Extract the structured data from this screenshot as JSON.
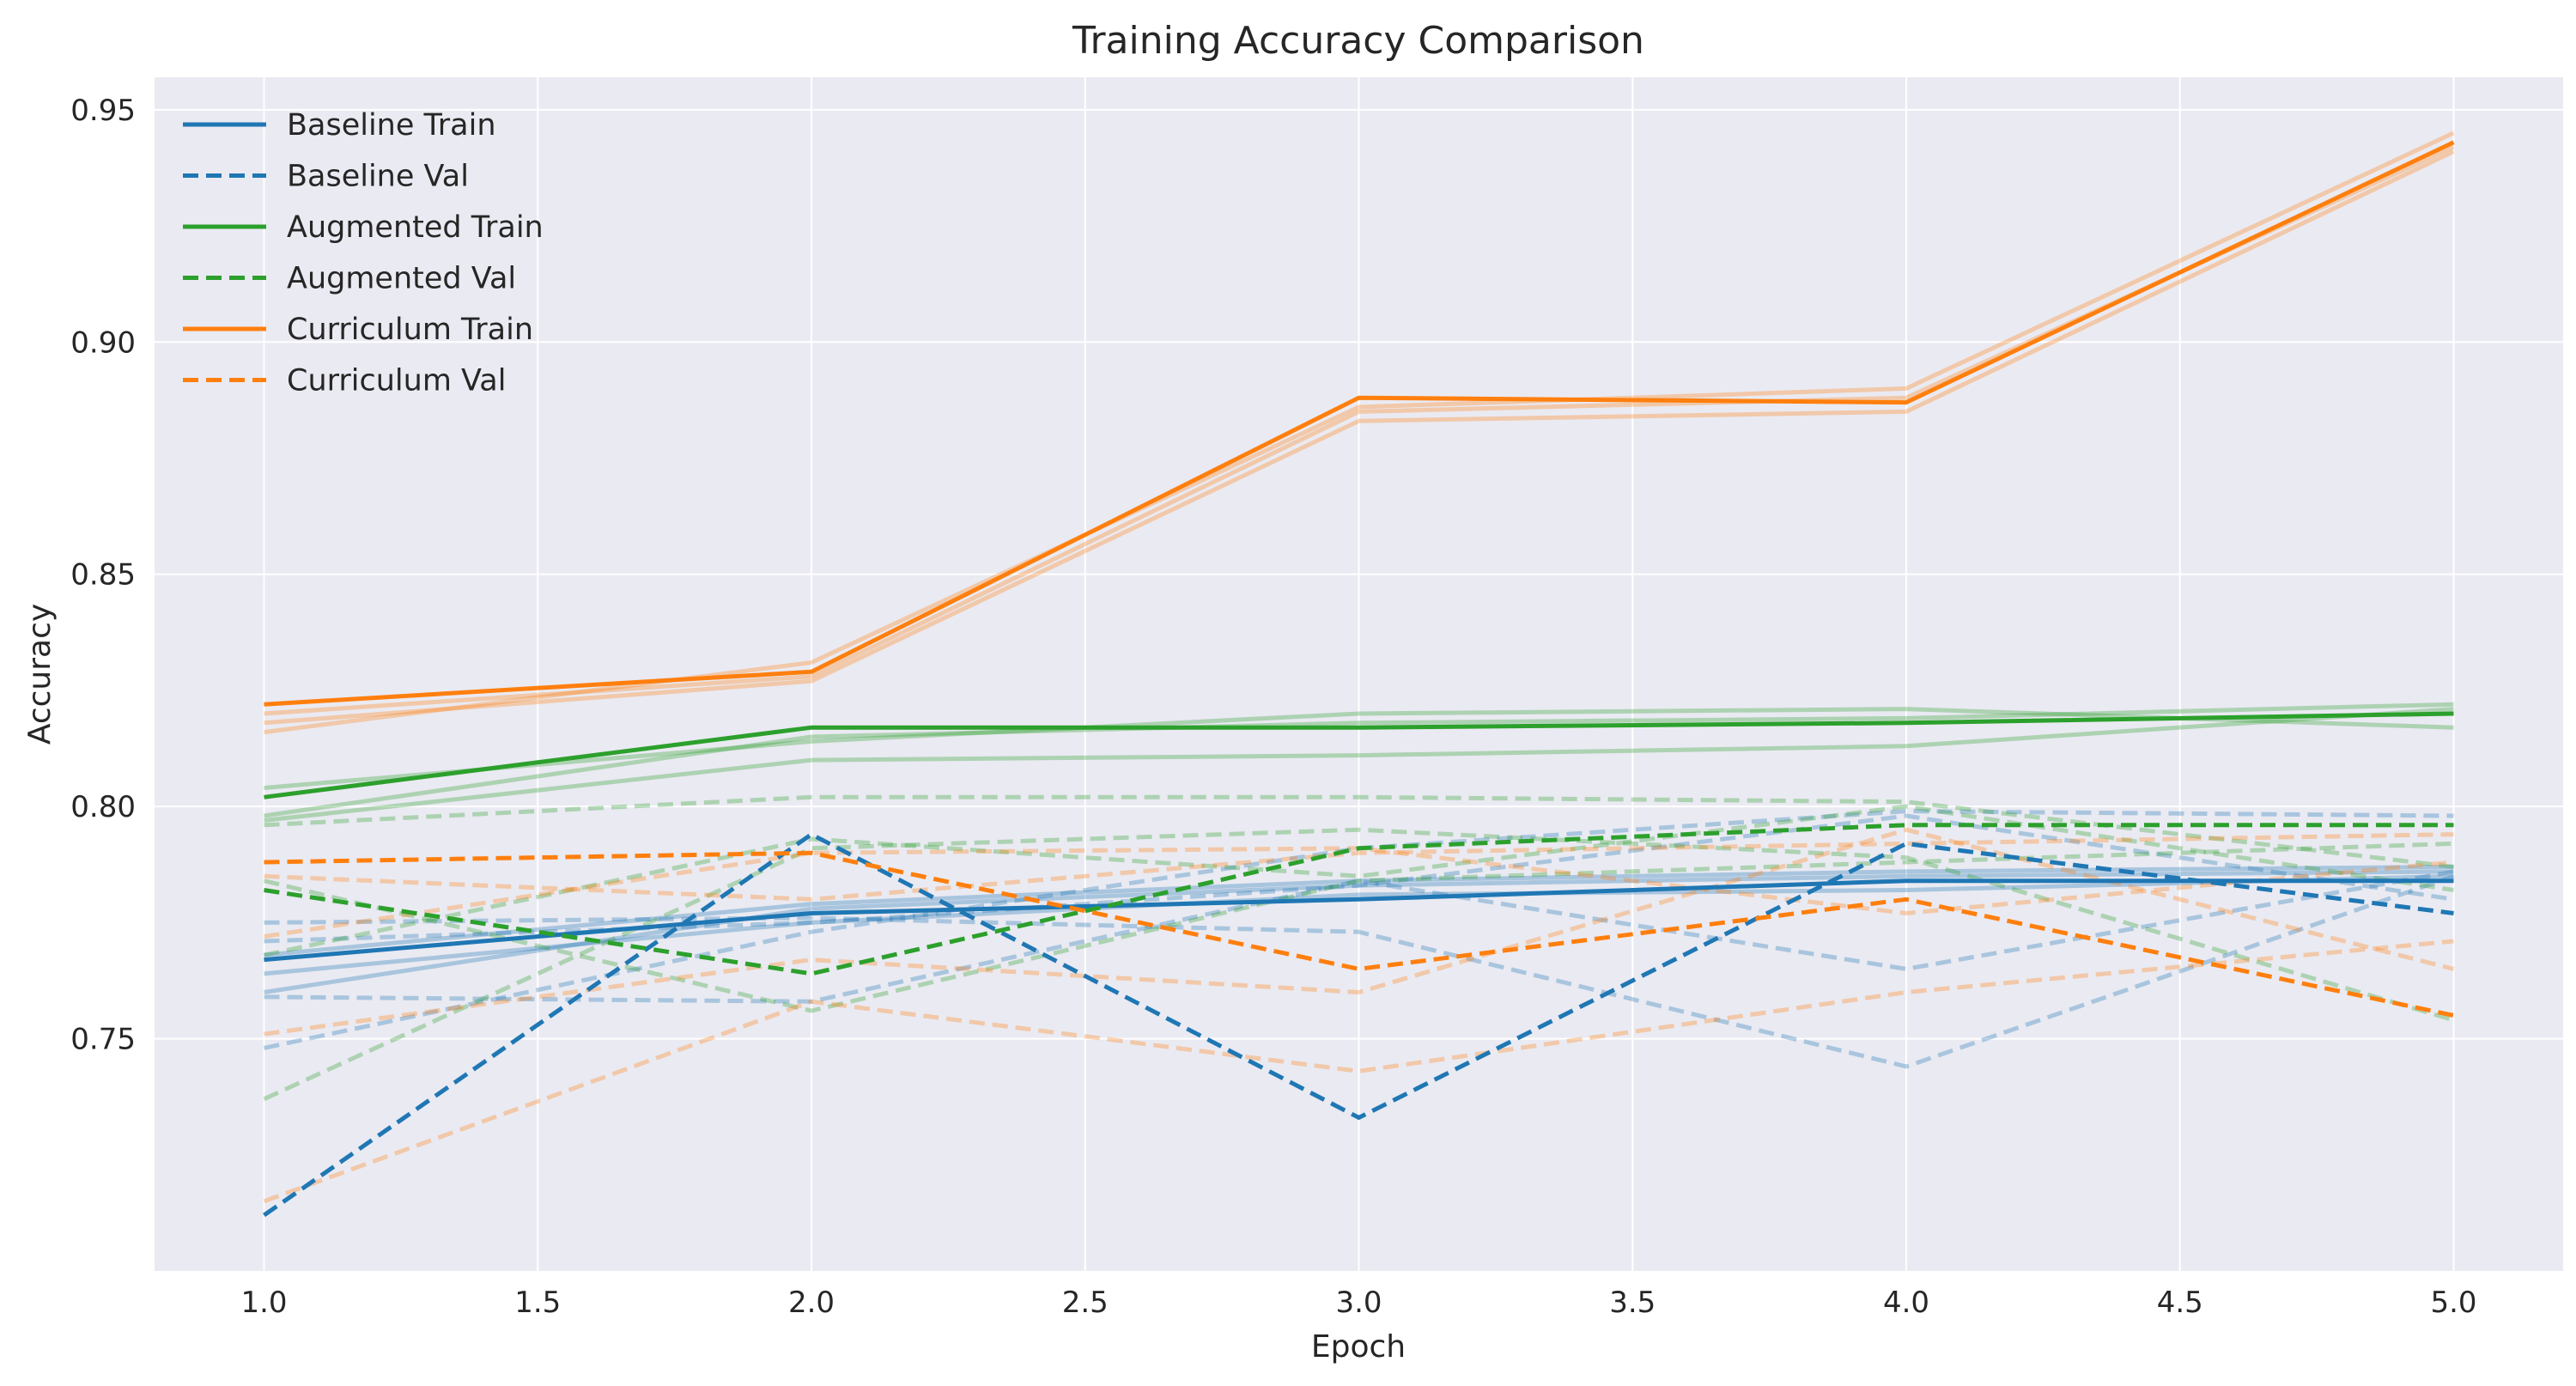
{
  "chart_data": {
    "type": "line",
    "title": "Training Accuracy Comparison",
    "xlabel": "Epoch",
    "ylabel": "Accuracy",
    "xlim": [
      0.8,
      5.2
    ],
    "ylim": [
      0.7,
      0.957
    ],
    "x_ticks": [
      "1.0",
      "1.5",
      "2.0",
      "2.5",
      "3.0",
      "3.5",
      "4.0",
      "4.5",
      "5.0"
    ],
    "y_ticks": [
      "0.75",
      "0.80",
      "0.85",
      "0.90",
      "0.95"
    ],
    "grid": true,
    "legend_position": "top-left",
    "x": [
      1,
      2,
      3,
      4,
      5
    ],
    "series": [
      {
        "name": "Baseline Train",
        "color": "#1f77b4",
        "style": "solid",
        "values": [
          0.767,
          0.777,
          0.78,
          0.784,
          0.784
        ]
      },
      {
        "name": "Baseline Val",
        "color": "#1f77b4",
        "style": "dashed",
        "values": [
          0.712,
          0.794,
          0.733,
          0.792,
          0.777
        ]
      },
      {
        "name": "Augmented Train",
        "color": "#2ca02c",
        "style": "solid",
        "values": [
          0.802,
          0.817,
          0.817,
          0.818,
          0.82
        ]
      },
      {
        "name": "Augmented Val",
        "color": "#2ca02c",
        "style": "dashed",
        "values": [
          0.782,
          0.764,
          0.791,
          0.796,
          0.796
        ]
      },
      {
        "name": "Curriculum Train",
        "color": "#ff7f0e",
        "style": "solid",
        "values": [
          0.822,
          0.829,
          0.888,
          0.887,
          0.943
        ]
      },
      {
        "name": "Curriculum Val",
        "color": "#ff7f0e",
        "style": "dashed",
        "values": [
          0.788,
          0.79,
          0.765,
          0.78,
          0.755
        ]
      }
    ],
    "faint_runs": [
      {
        "color": "#1f77b4",
        "style": "solid",
        "values": [
          0.764,
          0.775,
          0.781,
          0.782,
          0.785
        ]
      },
      {
        "color": "#1f77b4",
        "style": "solid",
        "values": [
          0.76,
          0.778,
          0.783,
          0.785,
          0.786
        ]
      },
      {
        "color": "#1f77b4",
        "style": "solid",
        "values": [
          0.768,
          0.779,
          0.784,
          0.786,
          0.787
        ]
      },
      {
        "color": "#1f77b4",
        "style": "dashed",
        "values": [
          0.748,
          0.773,
          0.791,
          0.799,
          0.798
        ]
      },
      {
        "color": "#1f77b4",
        "style": "dashed",
        "values": [
          0.775,
          0.776,
          0.773,
          0.744,
          0.785
        ]
      },
      {
        "color": "#1f77b4",
        "style": "dashed",
        "values": [
          0.759,
          0.758,
          0.784,
          0.765,
          0.786
        ]
      },
      {
        "color": "#1f77b4",
        "style": "dashed",
        "values": [
          0.771,
          0.775,
          0.783,
          0.798,
          0.78
        ]
      },
      {
        "color": "#2ca02c",
        "style": "solid",
        "values": [
          0.797,
          0.81,
          0.811,
          0.813,
          0.821
        ]
      },
      {
        "color": "#2ca02c",
        "style": "solid",
        "values": [
          0.804,
          0.814,
          0.82,
          0.821,
          0.817
        ]
      },
      {
        "color": "#2ca02c",
        "style": "solid",
        "values": [
          0.798,
          0.815,
          0.818,
          0.819,
          0.822
        ]
      },
      {
        "color": "#2ca02c",
        "style": "dashed",
        "values": [
          0.796,
          0.802,
          0.802,
          0.801,
          0.787
        ]
      },
      {
        "color": "#2ca02c",
        "style": "dashed",
        "values": [
          0.737,
          0.791,
          0.795,
          0.789,
          0.754
        ]
      },
      {
        "color": "#2ca02c",
        "style": "dashed",
        "values": [
          0.784,
          0.756,
          0.784,
          0.788,
          0.792
        ]
      },
      {
        "color": "#2ca02c",
        "style": "dashed",
        "values": [
          0.768,
          0.793,
          0.785,
          0.8,
          0.782
        ]
      },
      {
        "color": "#ff7f0e",
        "style": "solid",
        "values": [
          0.818,
          0.827,
          0.883,
          0.885,
          0.941
        ]
      },
      {
        "color": "#ff7f0e",
        "style": "solid",
        "values": [
          0.816,
          0.831,
          0.886,
          0.89,
          0.945
        ]
      },
      {
        "color": "#ff7f0e",
        "style": "solid",
        "values": [
          0.82,
          0.828,
          0.885,
          0.888,
          0.942
        ]
      },
      {
        "color": "#ff7f0e",
        "style": "dashed",
        "values": [
          0.715,
          0.758,
          0.743,
          0.76,
          0.771
        ]
      },
      {
        "color": "#ff7f0e",
        "style": "dashed",
        "values": [
          0.751,
          0.767,
          0.76,
          0.795,
          0.765
        ]
      },
      {
        "color": "#ff7f0e",
        "style": "dashed",
        "values": [
          0.785,
          0.78,
          0.79,
          0.792,
          0.794
        ]
      },
      {
        "color": "#ff7f0e",
        "style": "dashed",
        "values": [
          0.772,
          0.79,
          0.791,
          0.777,
          0.788
        ]
      }
    ]
  }
}
